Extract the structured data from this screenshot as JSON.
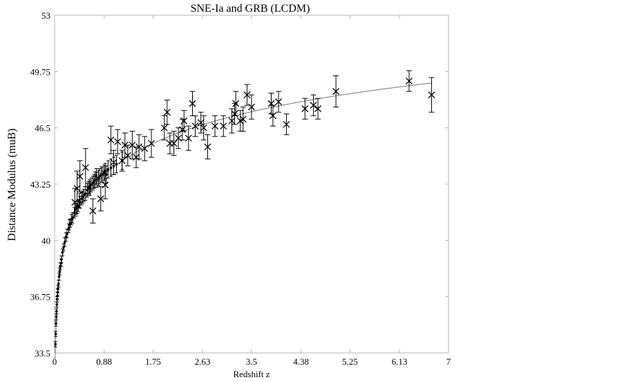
{
  "chart_data": {
    "type": "scatter",
    "title": "SNE-Ia and GRB (LCDM)",
    "xlabel": "Redshift z",
    "ylabel": "Distance Modulus (muB)",
    "xlim": [
      0,
      7
    ],
    "ylim": [
      33.5,
      53
    ],
    "x_ticks": [
      0,
      0.88,
      1.75,
      2.63,
      3.5,
      4.38,
      5.25,
      6.13,
      7
    ],
    "x_tick_labels": [
      "0",
      "0.88",
      "1.75",
      "2.63",
      "3.5",
      "4.38",
      "5.25",
      "6.13",
      "7"
    ],
    "y_ticks": [
      33.5,
      36.75,
      40,
      43.25,
      46.5,
      49.75,
      53
    ],
    "y_tick_labels": [
      "33.5",
      "36.75",
      "40",
      "43.25",
      "46.5",
      "49.75",
      "53"
    ],
    "grid": false,
    "series": [
      {
        "marker": "dot",
        "points": [
          [
            0.015,
            34.0,
            0.15
          ],
          [
            0.02,
            34.6,
            0.15
          ],
          [
            0.025,
            35.2,
            0.15
          ],
          [
            0.03,
            35.6,
            0.15
          ],
          [
            0.035,
            35.9,
            0.15
          ],
          [
            0.04,
            36.3,
            0.15
          ],
          [
            0.045,
            36.6,
            0.15
          ],
          [
            0.05,
            36.8,
            0.2
          ],
          [
            0.055,
            37.0,
            0.2
          ],
          [
            0.06,
            37.2,
            0.2
          ],
          [
            0.07,
            37.5,
            0.2
          ],
          [
            0.08,
            37.9,
            0.2
          ],
          [
            0.09,
            38.2,
            0.2
          ],
          [
            0.1,
            38.5,
            0.2
          ],
          [
            0.12,
            38.9,
            0.2
          ],
          [
            0.14,
            39.3,
            0.2
          ],
          [
            0.16,
            39.6,
            0.2
          ],
          [
            0.18,
            39.9,
            0.25
          ],
          [
            0.2,
            40.2,
            0.25
          ],
          [
            0.22,
            40.4,
            0.25
          ],
          [
            0.25,
            40.7,
            0.25
          ],
          [
            0.28,
            41.0,
            0.25
          ],
          [
            0.3,
            41.2,
            0.3
          ],
          [
            0.32,
            41.3,
            0.3
          ],
          [
            0.35,
            41.6,
            0.3
          ],
          [
            0.38,
            41.8,
            0.3
          ],
          [
            0.4,
            41.9,
            0.35
          ],
          [
            0.42,
            42.0,
            0.35
          ],
          [
            0.45,
            42.2,
            0.35
          ],
          [
            0.48,
            42.4,
            0.35
          ],
          [
            0.5,
            42.5,
            0.35
          ],
          [
            0.52,
            42.6,
            0.35
          ],
          [
            0.55,
            42.7,
            0.4
          ],
          [
            0.58,
            42.9,
            0.4
          ],
          [
            0.6,
            43.0,
            0.4
          ],
          [
            0.62,
            43.1,
            0.4
          ],
          [
            0.65,
            43.2,
            0.4
          ],
          [
            0.68,
            43.3,
            0.4
          ],
          [
            0.7,
            43.4,
            0.4
          ],
          [
            0.72,
            43.5,
            0.45
          ],
          [
            0.75,
            43.5,
            0.45
          ],
          [
            0.78,
            43.6,
            0.45
          ],
          [
            0.8,
            43.7,
            0.45
          ],
          [
            0.83,
            43.8,
            0.45
          ],
          [
            0.85,
            43.8,
            0.45
          ],
          [
            0.88,
            43.9,
            0.45
          ],
          [
            0.9,
            44.0,
            0.45
          ],
          [
            0.95,
            44.1,
            0.5
          ],
          [
            1.0,
            44.2,
            0.5
          ],
          [
            1.05,
            44.3,
            0.5
          ],
          [
            1.1,
            44.4,
            0.5
          ],
          [
            1.2,
            44.6,
            0.5
          ],
          [
            0.12,
            38.7,
            0.2
          ],
          [
            0.26,
            40.9,
            0.3
          ],
          [
            0.44,
            42.3,
            0.4
          ],
          [
            0.63,
            43.0,
            0.4
          ],
          [
            0.74,
            43.7,
            0.45
          ],
          [
            0.92,
            43.8,
            0.5
          ]
        ]
      },
      {
        "marker": "x",
        "points": [
          [
            0.36,
            42.2,
            0.8
          ],
          [
            0.4,
            43.0,
            1.0
          ],
          [
            0.45,
            43.7,
            0.9
          ],
          [
            0.55,
            44.2,
            1.1
          ],
          [
            0.68,
            41.7,
            0.7
          ],
          [
            0.82,
            42.4,
            0.7
          ],
          [
            0.9,
            43.2,
            0.8
          ],
          [
            1.0,
            45.8,
            0.8
          ],
          [
            1.05,
            44.5,
            0.7
          ],
          [
            1.12,
            45.7,
            0.7
          ],
          [
            1.2,
            44.6,
            0.6
          ],
          [
            1.25,
            45.5,
            0.7
          ],
          [
            1.3,
            44.9,
            0.6
          ],
          [
            1.38,
            45.5,
            0.8
          ],
          [
            1.45,
            44.8,
            0.6
          ],
          [
            1.5,
            45.4,
            0.7
          ],
          [
            1.6,
            45.3,
            0.7
          ],
          [
            1.72,
            45.6,
            0.8
          ],
          [
            1.95,
            46.5,
            0.7
          ],
          [
            2.0,
            47.4,
            0.7
          ],
          [
            2.05,
            45.6,
            0.6
          ],
          [
            2.12,
            45.6,
            0.7
          ],
          [
            2.2,
            45.9,
            0.6
          ],
          [
            2.27,
            46.4,
            0.6
          ],
          [
            2.3,
            46.9,
            0.6
          ],
          [
            2.38,
            45.9,
            0.7
          ],
          [
            2.45,
            47.9,
            0.7
          ],
          [
            2.5,
            46.6,
            0.6
          ],
          [
            2.6,
            46.8,
            0.6
          ],
          [
            2.65,
            46.5,
            0.7
          ],
          [
            2.72,
            45.4,
            0.7
          ],
          [
            2.85,
            46.6,
            0.6
          ],
          [
            3.0,
            46.6,
            0.6
          ],
          [
            3.15,
            46.9,
            0.7
          ],
          [
            3.2,
            47.3,
            0.6
          ],
          [
            3.22,
            47.9,
            0.7
          ],
          [
            3.3,
            46.9,
            0.6
          ],
          [
            3.35,
            47.0,
            0.7
          ],
          [
            3.42,
            48.4,
            0.6
          ],
          [
            3.5,
            47.7,
            0.7
          ],
          [
            3.85,
            47.9,
            0.6
          ],
          [
            3.88,
            47.2,
            0.6
          ],
          [
            3.98,
            48.0,
            0.6
          ],
          [
            4.12,
            46.7,
            0.6
          ],
          [
            4.45,
            47.6,
            0.6
          ],
          [
            4.6,
            47.8,
            0.6
          ],
          [
            4.68,
            47.6,
            0.6
          ],
          [
            5.0,
            48.6,
            0.9
          ],
          [
            6.3,
            49.2,
            0.6
          ],
          [
            6.7,
            48.4,
            1.0
          ]
        ]
      }
    ]
  }
}
